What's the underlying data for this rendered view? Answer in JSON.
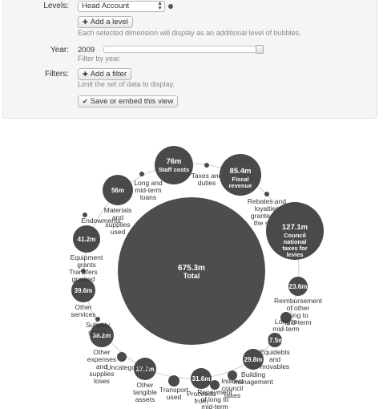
{
  "form": {
    "levels_label": "Levels:",
    "levels_value": "Head Account",
    "add_level": "Add a level",
    "levels_help": "Each selected dimension will display as an additional level of bubbles.",
    "year_label": "Year:",
    "year_value": "2009",
    "year_help": "Filter by year.",
    "filters_label": "Filters:",
    "add_filter": "Add a filter",
    "filters_help": "Limit the set of data to display.",
    "save_embed": "Save or embed this view"
  },
  "bubbles": {
    "center": {
      "amount": "675.3m",
      "label": "Total"
    },
    "items": [
      {
        "amount": "76m",
        "label": "Staff costs"
      },
      {
        "amount": "",
        "label": "Taxes and duties"
      },
      {
        "amount": "85.4m",
        "label": "Fiscal revenue"
      },
      {
        "amount": "",
        "label": "Rebates and loyalties granted by the state"
      },
      {
        "amount": "127.1m",
        "label": "Council national taxes for levies"
      },
      {
        "amount": "23.6m",
        "label": "Reimbursement of other long to mid-term"
      },
      {
        "amount": "",
        "label": "Long to mid-term"
      },
      {
        "amount": "17.5m",
        "label": "Equidebts and movables"
      },
      {
        "amount": "29.8m",
        "label": "Building management"
      },
      {
        "amount": "",
        "label": "Indirect council taxes"
      },
      {
        "amount": "",
        "label": "Repayment of long to mid-term"
      },
      {
        "amount": "31.6m",
        "label": "Proceeds from"
      },
      {
        "amount": "",
        "label": "Transport used"
      },
      {
        "amount": "37.7m",
        "label": "Other tangible assets"
      },
      {
        "amount": "",
        "label": "Uncategorized"
      },
      {
        "amount": "38.2m",
        "label": "Other expenses and supplies loses"
      },
      {
        "amount": "",
        "label": "Subsidy grants"
      },
      {
        "amount": "39.6m",
        "label": "Other services"
      },
      {
        "amount": "",
        "label": "Transfers granted"
      },
      {
        "amount": "41.2m",
        "label": "Equipment grants"
      },
      {
        "amount": "",
        "label": "Endowments"
      },
      {
        "amount": "56m",
        "label": "Materials and supplies used"
      },
      {
        "amount": "",
        "label": "Long and mid-term loans"
      }
    ]
  },
  "colors": {
    "bubble": "#4a4a4a",
    "center": "#4d4d4d",
    "link": "#cccccc"
  }
}
